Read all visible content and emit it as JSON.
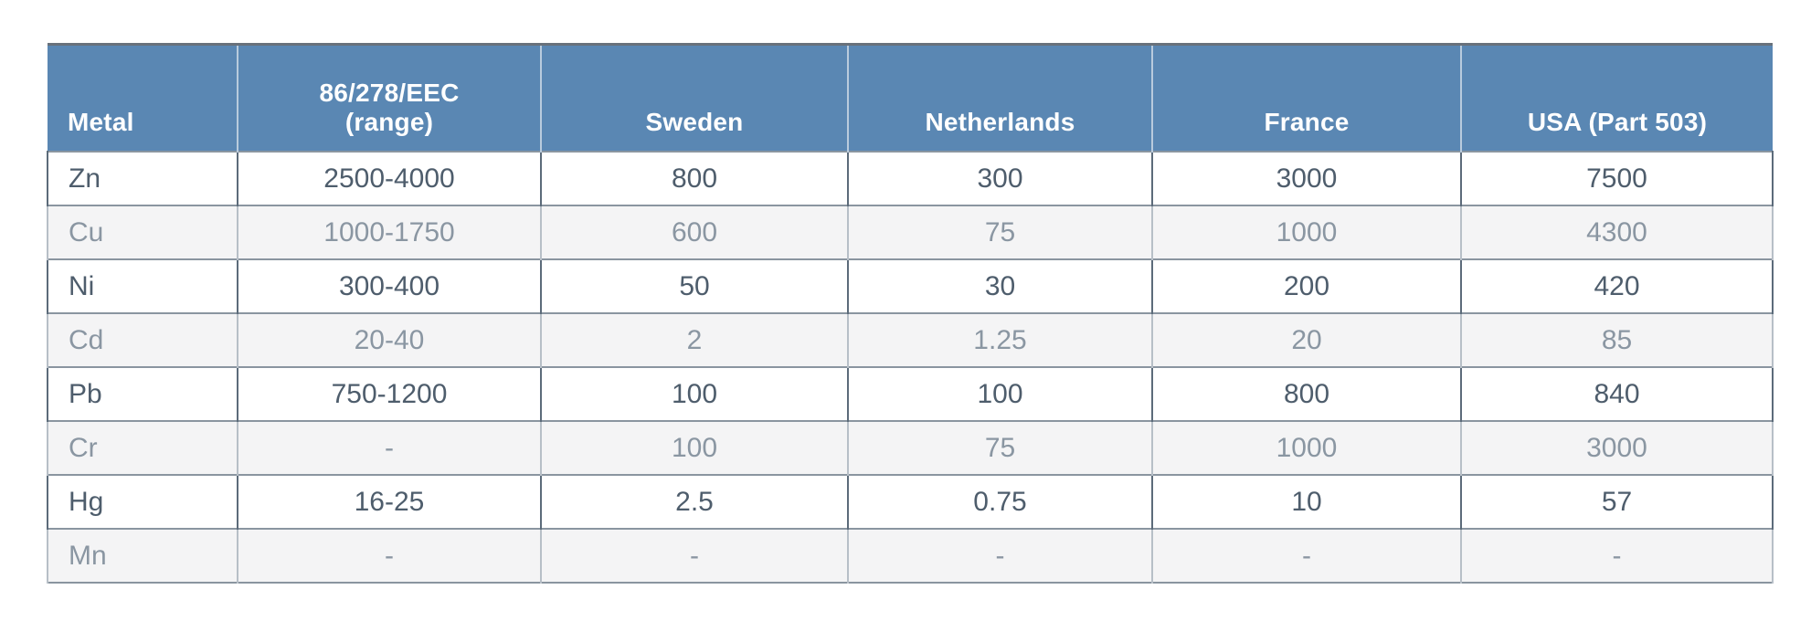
{
  "table": {
    "columns": [
      "Metal",
      "86/278/EEC\n(range)",
      "Sweden",
      "Netherlands",
      "France",
      "USA (Part 503)"
    ],
    "rows": [
      {
        "metal": "Zn",
        "values": [
          "2500-4000",
          "800",
          "300",
          "3000",
          "7500"
        ]
      },
      {
        "metal": "Cu",
        "values": [
          "1000-1750",
          "600",
          "75",
          "1000",
          "4300"
        ]
      },
      {
        "metal": "Ni",
        "values": [
          "300-400",
          "50",
          "30",
          "200",
          "420"
        ]
      },
      {
        "metal": "Cd",
        "values": [
          "20-40",
          "2",
          "1.25",
          "20",
          "85"
        ]
      },
      {
        "metal": "Pb",
        "values": [
          "750-1200",
          "100",
          "100",
          "800",
          "840"
        ]
      },
      {
        "metal": "Cr",
        "values": [
          "-",
          "100",
          "75",
          "1000",
          "3000"
        ]
      },
      {
        "metal": "Hg",
        "values": [
          "16-25",
          "2.5",
          "0.75",
          "10",
          "57"
        ]
      },
      {
        "metal": "Mn",
        "values": [
          "-",
          "-",
          "-",
          "-",
          "-"
        ]
      }
    ],
    "colors": {
      "header_bg": "#5a87b3",
      "header_text": "#ffffff",
      "row_alt_bg": "#f4f4f5",
      "text_dark": "#4e5d6c",
      "text_light": "#8a96a2",
      "border_dark": "#5c6b7a",
      "border_light": "#b7bfc7",
      "border_row": "#8a95a0"
    }
  },
  "chart_data": {
    "type": "table",
    "title": "",
    "columns": [
      "Metal",
      "86/278/EEC (range)",
      "Sweden",
      "Netherlands",
      "France",
      "USA (Part 503)"
    ],
    "rows": [
      [
        "Zn",
        "2500-4000",
        "800",
        "300",
        "3000",
        "7500"
      ],
      [
        "Cu",
        "1000-1750",
        "600",
        "75",
        "1000",
        "4300"
      ],
      [
        "Ni",
        "300-400",
        "50",
        "30",
        "200",
        "420"
      ],
      [
        "Cd",
        "20-40",
        "2",
        "1.25",
        "20",
        "85"
      ],
      [
        "Pb",
        "750-1200",
        "100",
        "100",
        "800",
        "840"
      ],
      [
        "Cr",
        "-",
        "100",
        "75",
        "1000",
        "3000"
      ],
      [
        "Hg",
        "16-25",
        "2.5",
        "0.75",
        "10",
        "57"
      ],
      [
        "Mn",
        "-",
        "-",
        "-",
        "-",
        "-"
      ]
    ]
  }
}
